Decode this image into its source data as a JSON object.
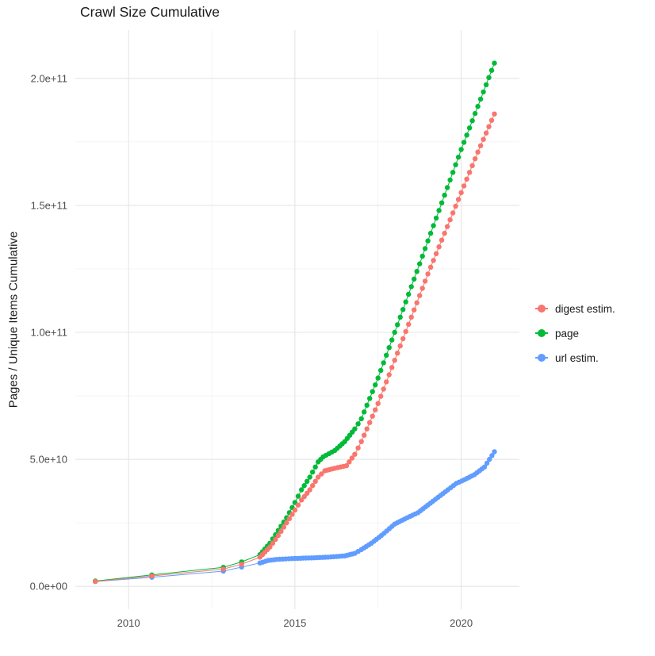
{
  "chart_data": {
    "type": "scatter",
    "title": "Crawl Size Cumulative",
    "xlabel": "",
    "ylabel": "Pages / Unique Items Cumulative",
    "x_ticks": [
      2010,
      2015,
      2020
    ],
    "x_tick_labels": [
      "2010",
      "2015",
      "2020"
    ],
    "x_minor_ticks": [
      2012.5,
      2017.5
    ],
    "y_ticks": [
      0,
      50000000000.0,
      100000000000.0,
      150000000000.0,
      200000000000.0
    ],
    "y_tick_labels": [
      "0.0e+00",
      "5.0e+10",
      "1.0e+11",
      "1.5e+11",
      "2.0e+11"
    ],
    "y_minor_ticks": [
      25000000000.0,
      75000000000.0,
      125000000000.0,
      175000000000.0
    ],
    "xlim": [
      2008.4,
      2021.75
    ],
    "ylim": [
      -9000000000.0,
      219000000000.0
    ],
    "grid": true,
    "legend_position": "right",
    "colors": {
      "major_grid": "#e5e5e5",
      "minor_grid": "#f2f2f2",
      "background": "#ffffff"
    },
    "point_interval_years": 0.085,
    "dense_from_year": 2013.9,
    "draw_order": [
      "url estim.",
      "page",
      "digest estim."
    ],
    "series": [
      {
        "name": "digest estim.",
        "color": "#F8766D",
        "keypoints": [
          [
            2009.0,
            1900000000.0
          ],
          [
            2010.7,
            4100000000.0
          ],
          [
            2012.85,
            6800000000.0
          ],
          [
            2013.4,
            8700000000.0
          ],
          [
            2013.95,
            11500000000.0
          ],
          [
            2014.25,
            15500000000.0
          ],
          [
            2014.5,
            20000000000.0
          ],
          [
            2014.75,
            25000000000.0
          ],
          [
            2015.0,
            30000000000.0
          ],
          [
            2015.2,
            34000000000.0
          ],
          [
            2015.45,
            38000000000.0
          ],
          [
            2015.7,
            43000000000.0
          ],
          [
            2015.9,
            45500000000.0
          ],
          [
            2016.2,
            46500000000.0
          ],
          [
            2016.55,
            47500000000.0
          ],
          [
            2016.8,
            52000000000.0
          ],
          [
            2017.0,
            57000000000.0
          ],
          [
            2017.5,
            72000000000.0
          ],
          [
            2018.0,
            89000000000.0
          ],
          [
            2018.5,
            106000000000.0
          ],
          [
            2019.0,
            123000000000.0
          ],
          [
            2019.5,
            139000000000.0
          ],
          [
            2020.0,
            155000000000.0
          ],
          [
            2020.5,
            171000000000.0
          ],
          [
            2021.0,
            186000000000.0
          ]
        ]
      },
      {
        "name": "page",
        "color": "#00BA38",
        "keypoints": [
          [
            2009.0,
            2100000000.0
          ],
          [
            2010.7,
            4500000000.0
          ],
          [
            2012.85,
            7500000000.0
          ],
          [
            2013.4,
            9600000000.0
          ],
          [
            2013.95,
            12500000000.0
          ],
          [
            2014.25,
            17000000000.0
          ],
          [
            2014.5,
            22000000000.0
          ],
          [
            2014.75,
            27000000000.0
          ],
          [
            2015.0,
            33000000000.0
          ],
          [
            2015.2,
            38000000000.0
          ],
          [
            2015.45,
            43000000000.0
          ],
          [
            2015.7,
            49000000000.0
          ],
          [
            2015.85,
            51000000000.0
          ],
          [
            2016.2,
            53500000000.0
          ],
          [
            2016.5,
            57000000000.0
          ],
          [
            2016.8,
            62000000000.0
          ],
          [
            2017.0,
            66000000000.0
          ],
          [
            2017.5,
            82000000000.0
          ],
          [
            2018.0,
            100000000000.0
          ],
          [
            2018.5,
            118000000000.0
          ],
          [
            2019.0,
            136000000000.0
          ],
          [
            2019.5,
            154000000000.0
          ],
          [
            2020.0,
            172000000000.0
          ],
          [
            2020.5,
            189000000000.0
          ],
          [
            2021.0,
            206000000000.0
          ]
        ]
      },
      {
        "name": "url estim.",
        "color": "#619CFF",
        "keypoints": [
          [
            2009.0,
            1900000000.0
          ],
          [
            2010.7,
            3600000000.0
          ],
          [
            2012.85,
            6000000000.0
          ],
          [
            2013.4,
            7600000000.0
          ],
          [
            2013.95,
            9200000000.0
          ],
          [
            2014.2,
            10200000000.0
          ],
          [
            2014.45,
            10600000000.0
          ],
          [
            2015.0,
            11000000000.0
          ],
          [
            2015.5,
            11200000000.0
          ],
          [
            2016.0,
            11500000000.0
          ],
          [
            2016.5,
            12000000000.0
          ],
          [
            2016.8,
            13000000000.0
          ],
          [
            2017.0,
            14500000000.0
          ],
          [
            2017.3,
            17000000000.0
          ],
          [
            2017.6,
            20000000000.0
          ],
          [
            2018.0,
            24500000000.0
          ],
          [
            2018.3,
            26500000000.0
          ],
          [
            2018.7,
            29000000000.0
          ],
          [
            2019.0,
            32000000000.0
          ],
          [
            2019.3,
            35000000000.0
          ],
          [
            2019.6,
            38000000000.0
          ],
          [
            2019.85,
            40500000000.0
          ],
          [
            2020.1,
            42000000000.0
          ],
          [
            2020.4,
            44000000000.0
          ],
          [
            2020.7,
            47000000000.0
          ],
          [
            2021.0,
            53000000000.0
          ]
        ]
      }
    ]
  }
}
